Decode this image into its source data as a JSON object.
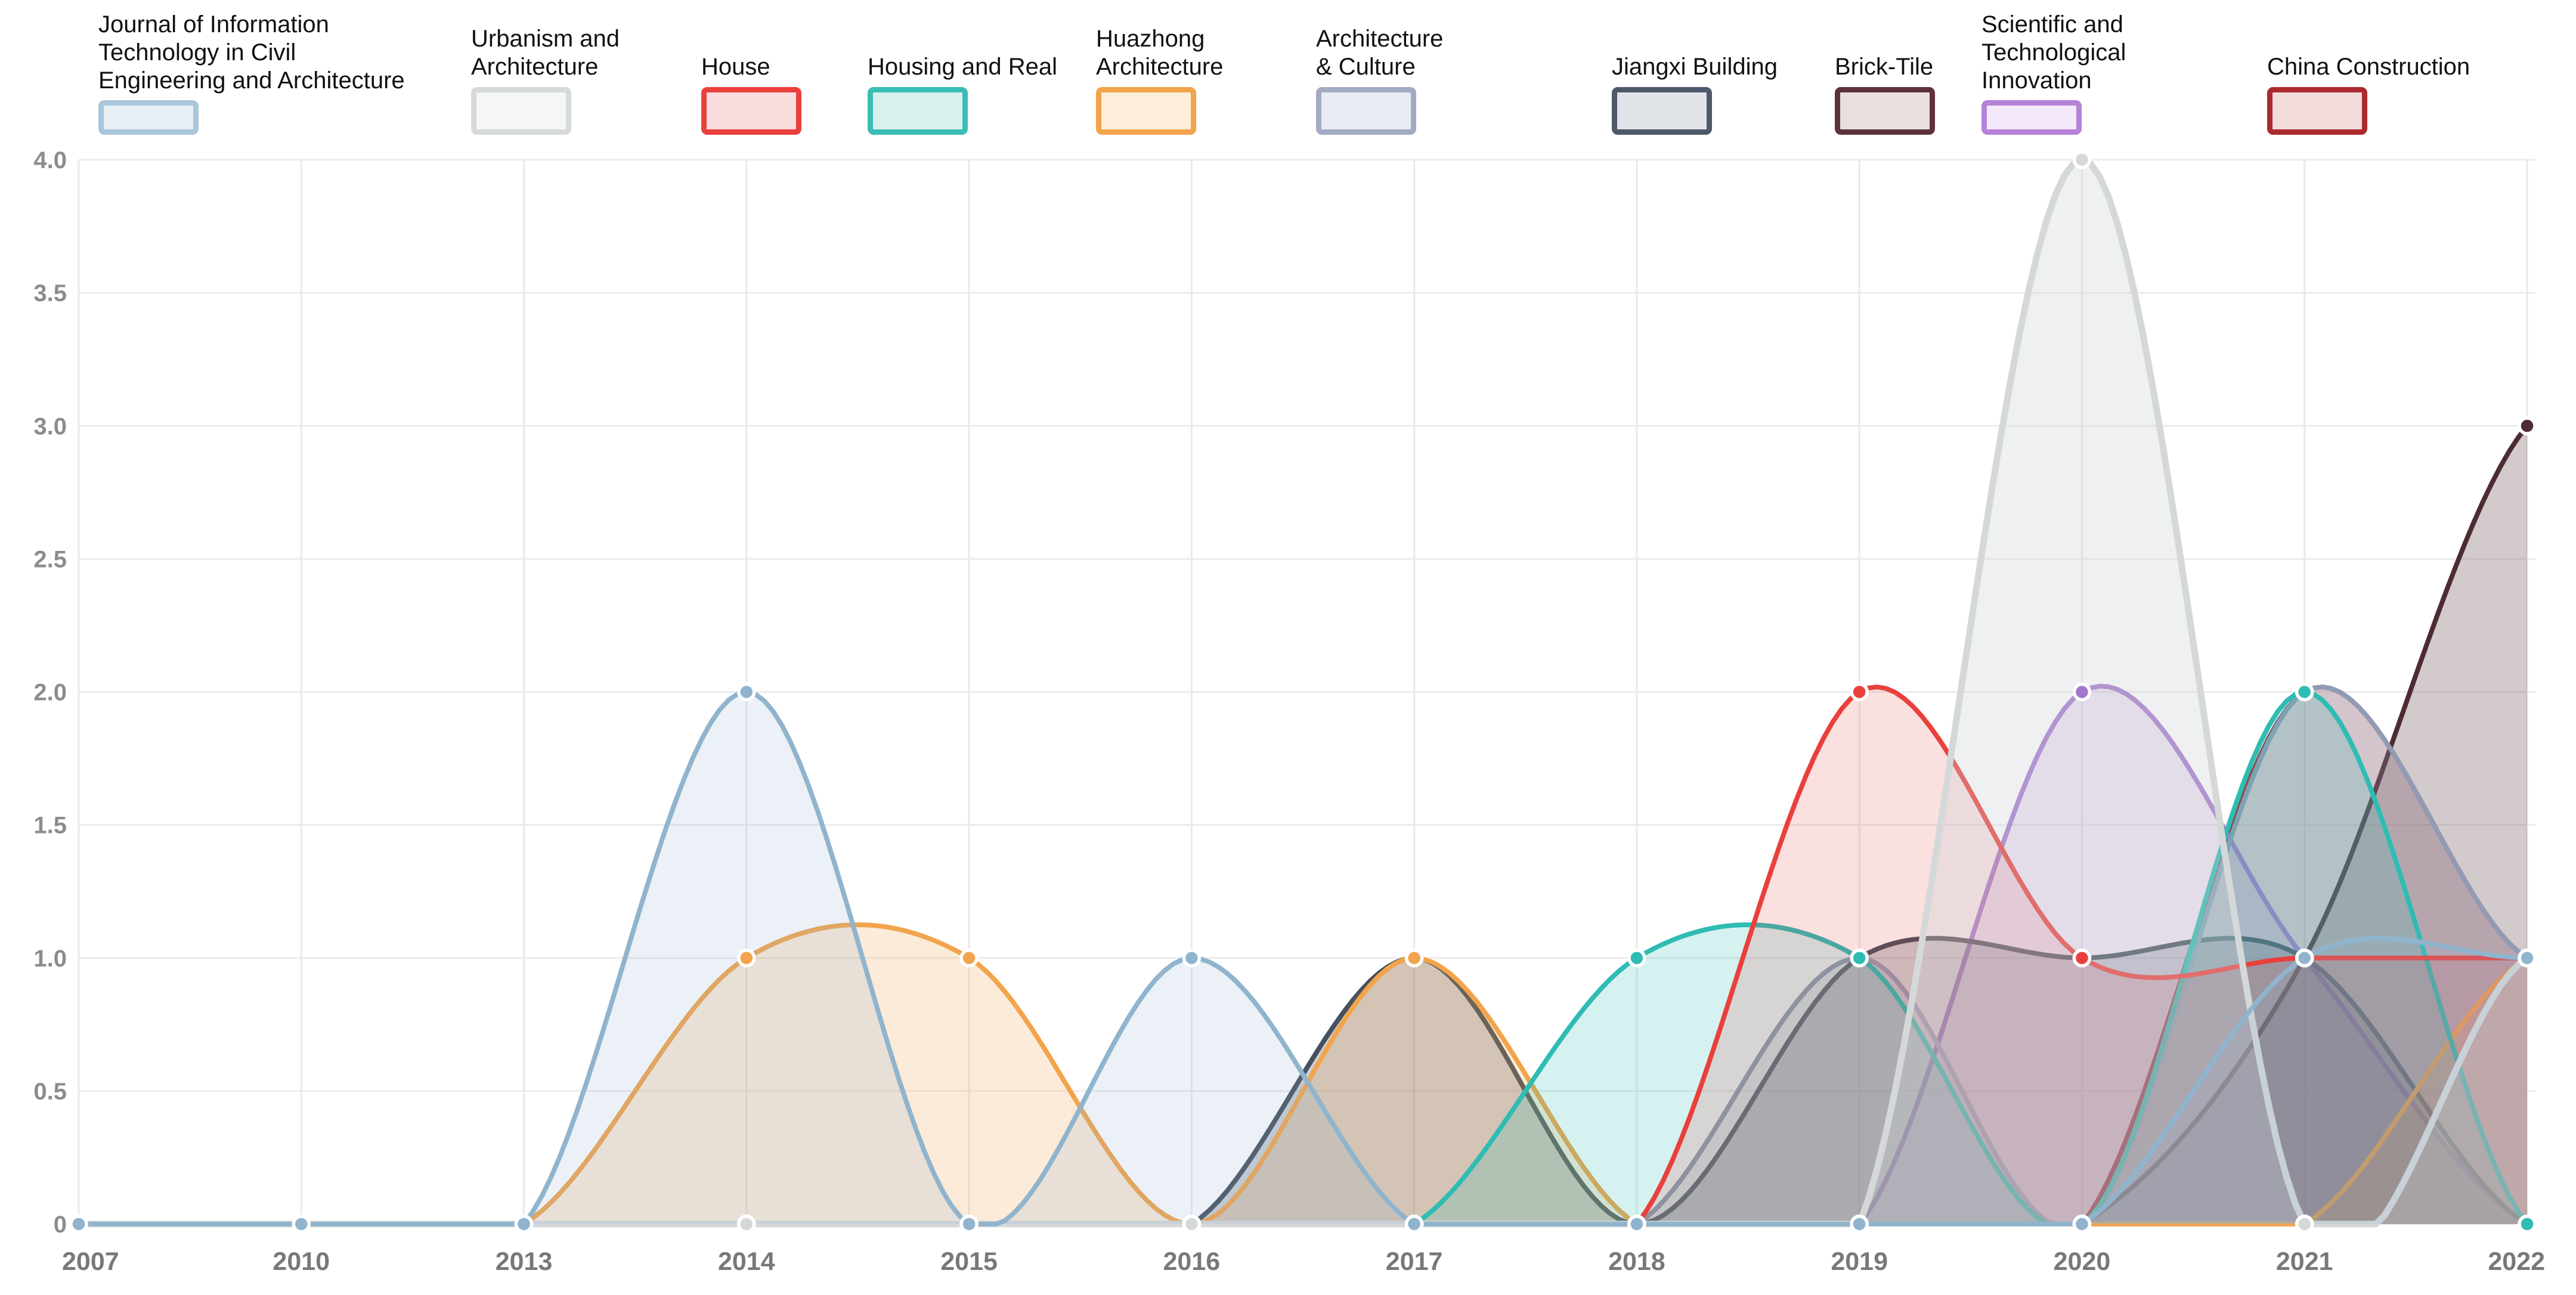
{
  "legend": {
    "items": [
      {
        "label_lines": [
          "Journal of Information",
          "Technology in Civil",
          "Engineering and Architecture"
        ],
        "border": "#a9c6da",
        "fill": "#e7eff5"
      },
      {
        "label_lines": [
          "Urbanism and",
          "Architecture"
        ],
        "border": "#d6dada",
        "fill": "#f5f7f7"
      },
      {
        "label_lines": [
          "House"
        ],
        "border": "#e9403c",
        "fill": "#fadcdc"
      },
      {
        "label_lines": [
          "Housing and Real"
        ],
        "border": "#3abdb4",
        "fill": "#d8f1ef"
      },
      {
        "label_lines": [
          "Huazhong",
          "Architecture"
        ],
        "border": "#f2a44c",
        "fill": "#fdeeda"
      },
      {
        "label_lines": [
          "Architecture",
          "& Culture"
        ],
        "border": "#a3abc4",
        "fill": "#e8ebf2"
      },
      {
        "label_lines": [
          "Jiangxi Building"
        ],
        "border": "#4d586a",
        "fill": "#e0e3e8"
      },
      {
        "label_lines": [
          "Brick-Tile"
        ],
        "border": "#5d3238",
        "fill": "#eadfdf"
      },
      {
        "label_lines": [
          "Scientific and",
          "Technological",
          "Innovation"
        ],
        "border": "#b681d8",
        "fill": "#f4e9fb"
      },
      {
        "label_lines": [
          "China Construction"
        ],
        "border": "#ab2a2e",
        "fill": "#f1dbdb"
      }
    ]
  },
  "chart_data": {
    "type": "area",
    "title": "",
    "xlabel": "",
    "ylabel": "",
    "curve": "spline",
    "grid": true,
    "legend_position": "top",
    "categories": [
      "2007",
      "2010",
      "2013",
      "2014",
      "2015",
      "2016",
      "2017",
      "2018",
      "2019",
      "2020",
      "2021",
      "2022"
    ],
    "y_ticks": [
      "4.0",
      "3.5",
      "3.0",
      "2.5",
      "2.0",
      "1.5",
      "1.0",
      "0.5",
      "0"
    ],
    "ylim": [
      0,
      4
    ],
    "series": [
      {
        "name": "Journal of Information Technology in Civil Engineering and Architecture",
        "color": "#90b4cd",
        "fill": "rgba(145,180,205,0.18)",
        "values": [
          0,
          0,
          0,
          2,
          0,
          1,
          0,
          0,
          0,
          0,
          1,
          1
        ]
      },
      {
        "name": "Urbanism and Architecture",
        "color": "#d5d8d9",
        "fill": "rgba(205,208,210,0.32)",
        "values": [
          0,
          0,
          0,
          0,
          0,
          0,
          0,
          0,
          0,
          4,
          0,
          1
        ]
      },
      {
        "name": "House",
        "color": "#e9403c",
        "fill": "rgba(233,64,60,0.16)",
        "values": [
          0,
          0,
          0,
          0,
          0,
          0,
          0,
          0,
          2,
          1,
          1,
          1
        ]
      },
      {
        "name": "Housing and Real",
        "color": "#2fbcb3",
        "fill": "rgba(47,188,179,0.20)",
        "values": [
          0,
          0,
          0,
          0,
          0,
          0,
          0,
          1,
          1,
          0,
          2,
          0
        ]
      },
      {
        "name": "Huazhong Architecture",
        "color": "#f2a44c",
        "fill": "rgba(242,164,76,0.22)",
        "values": [
          0,
          0,
          0,
          1,
          1,
          0,
          1,
          0,
          0,
          0,
          0,
          1
        ]
      },
      {
        "name": "Architecture & Culture",
        "color": "#929bb4",
        "fill": "rgba(146,155,180,0.25)",
        "values": [
          0,
          0,
          0,
          0,
          0,
          0,
          0,
          0,
          1,
          0,
          2,
          1
        ]
      },
      {
        "name": "Jiangxi Building",
        "color": "#46505e",
        "fill": "rgba(70,80,94,0.28)",
        "values": [
          0,
          0,
          0,
          0,
          0,
          0,
          1,
          0,
          1,
          1,
          1,
          0
        ]
      },
      {
        "name": "Brick-Tile",
        "color": "#4e2b32",
        "fill": "rgba(78,43,50,0.25)",
        "values": [
          0,
          0,
          0,
          0,
          0,
          0,
          0,
          0,
          0,
          0,
          1,
          3
        ]
      },
      {
        "name": "Scientific and Technological Innovation",
        "color": "#a478cf",
        "fill": "rgba(164,120,207,0.20)",
        "values": [
          0,
          0,
          0,
          0,
          0,
          0,
          0,
          0,
          0,
          2,
          1,
          0
        ]
      },
      {
        "name": "China Construction",
        "color": "#a03039",
        "fill": "rgba(160,48,57,0.22)",
        "values": [
          0,
          0,
          0,
          0,
          0,
          0,
          0,
          0,
          0,
          0,
          2,
          1
        ]
      }
    ]
  }
}
